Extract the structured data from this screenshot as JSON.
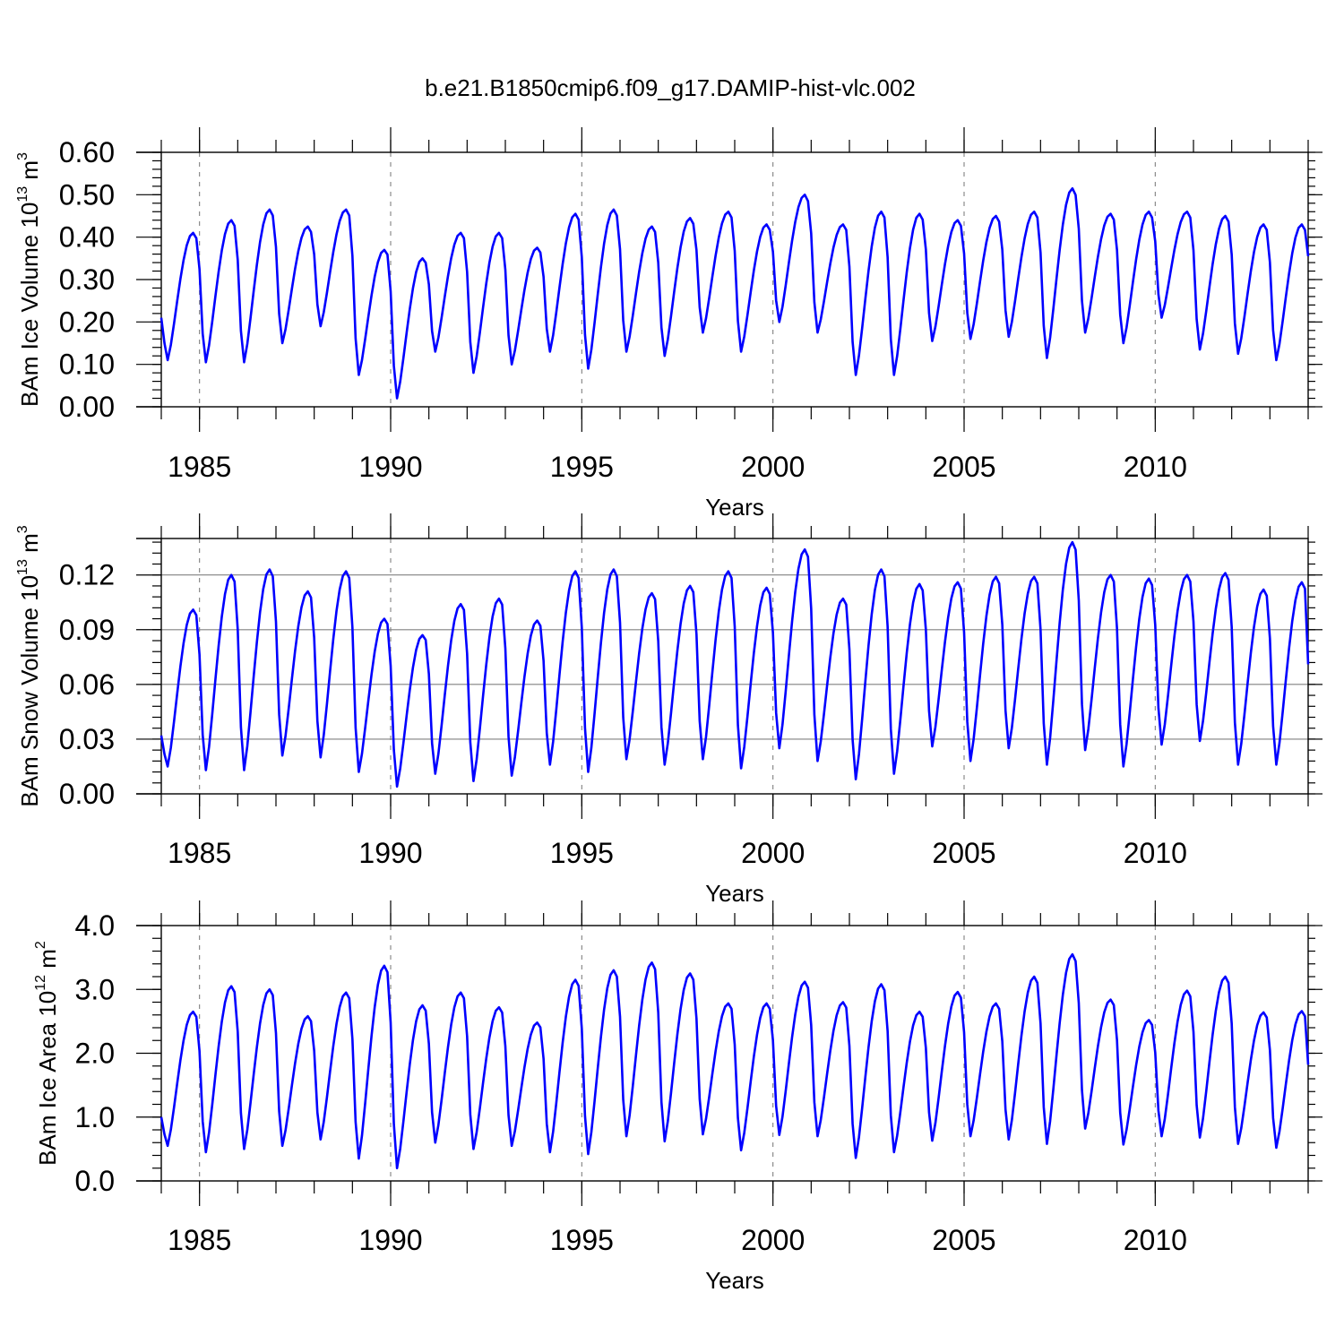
{
  "title": "b.e21.B1850cmip6.f09_g17.DAMIP-hist-vlc.002",
  "line_color": "#0000ff",
  "grid_color": "#808080",
  "chart_data": [
    {
      "type": "line",
      "ylabel": {
        "main": "BAm Ice Volume 10",
        "sup1": "13",
        "mid": " m",
        "sup2": "3"
      },
      "xlabel": "Years",
      "xlim": [
        1984.0,
        2014.0
      ],
      "ylim": [
        0.0,
        0.6
      ],
      "yticks": [
        0.0,
        0.1,
        0.2,
        0.3,
        0.4,
        0.5,
        0.6
      ],
      "ytick_labels": [
        "0.00",
        "0.10",
        "0.20",
        "0.30",
        "0.40",
        "0.50",
        "0.60"
      ],
      "xticks": [
        1985,
        1990,
        1995,
        2000,
        2005,
        2010
      ],
      "xtick_labels": [
        "1985",
        "1990",
        "1995",
        "2000",
        "2005",
        "2010"
      ],
      "grid_x": [
        1985,
        1990,
        1995,
        2000,
        2005,
        2010
      ],
      "series": [
        {
          "name": "BAm Ice Volume",
          "start_year": 1984.0,
          "step": 0.08333,
          "minima": [
            0.11,
            0.105,
            0.105,
            0.15,
            0.19,
            0.075,
            0.02,
            0.13,
            0.08,
            0.1,
            0.13,
            0.09,
            0.13,
            0.12,
            0.175,
            0.13,
            0.2,
            0.175,
            0.075,
            0.075,
            0.155,
            0.16,
            0.165,
            0.115,
            0.175,
            0.15,
            0.21,
            0.135,
            0.125,
            0.11
          ],
          "maxima": [
            0.41,
            0.44,
            0.465,
            0.425,
            0.465,
            0.37,
            0.35,
            0.41,
            0.41,
            0.375,
            0.455,
            0.465,
            0.425,
            0.445,
            0.46,
            0.43,
            0.5,
            0.43,
            0.46,
            0.455,
            0.44,
            0.45,
            0.46,
            0.515,
            0.455,
            0.46,
            0.46,
            0.45,
            0.43,
            0.43
          ],
          "start_value": 0.21,
          "end_value": 0.355
        }
      ]
    },
    {
      "type": "line",
      "ylabel": {
        "main": "BAm Snow Volume 10",
        "sup1": "13",
        "mid": " m",
        "sup2": "3"
      },
      "xlabel": "Years",
      "xlim": [
        1984.0,
        2014.0
      ],
      "ylim": [
        0.0,
        0.14
      ],
      "yticks": [
        0.0,
        0.03,
        0.06,
        0.09,
        0.12
      ],
      "ytick_labels": [
        "0.00",
        "0.03",
        "0.06",
        "0.09",
        "0.12"
      ],
      "xticks": [
        1985,
        1990,
        1995,
        2000,
        2005,
        2010
      ],
      "xtick_labels": [
        "1985",
        "1990",
        "1995",
        "2000",
        "2005",
        "2010"
      ],
      "grid_x": [
        1985,
        1990,
        1995,
        2000,
        2005,
        2010
      ],
      "grid_y": [
        0.03,
        0.06,
        0.09,
        0.12
      ],
      "series": [
        {
          "name": "BAm Snow Volume",
          "start_year": 1984.0,
          "step": 0.08333,
          "minima": [
            0.015,
            0.013,
            0.013,
            0.021,
            0.02,
            0.012,
            0.004,
            0.011,
            0.007,
            0.01,
            0.016,
            0.012,
            0.019,
            0.016,
            0.019,
            0.014,
            0.025,
            0.018,
            0.008,
            0.011,
            0.026,
            0.018,
            0.025,
            0.016,
            0.024,
            0.015,
            0.027,
            0.029,
            0.016,
            0.016
          ],
          "maxima": [
            0.101,
            0.12,
            0.123,
            0.111,
            0.122,
            0.096,
            0.087,
            0.104,
            0.107,
            0.095,
            0.122,
            0.123,
            0.11,
            0.114,
            0.122,
            0.113,
            0.134,
            0.107,
            0.123,
            0.115,
            0.116,
            0.119,
            0.119,
            0.138,
            0.12,
            0.118,
            0.12,
            0.121,
            0.112,
            0.116
          ],
          "start_value": 0.032,
          "end_value": 0.071
        }
      ]
    },
    {
      "type": "line",
      "ylabel": {
        "main": "BAm Ice Area 10",
        "sup1": "12",
        "mid": " m",
        "sup2": "2"
      },
      "xlabel": "Years",
      "xlim": [
        1984.0,
        2014.0
      ],
      "ylim": [
        0.0,
        4.0
      ],
      "yticks": [
        0.0,
        1.0,
        2.0,
        3.0,
        4.0
      ],
      "ytick_labels": [
        "0.0",
        "1.0",
        "2.0",
        "3.0",
        "4.0"
      ],
      "xticks": [
        1985,
        1990,
        1995,
        2000,
        2005,
        2010
      ],
      "xtick_labels": [
        "1985",
        "1990",
        "1995",
        "2000",
        "2005",
        "2010"
      ],
      "grid_x": [
        1985,
        1990,
        1995,
        2000,
        2005,
        2010
      ],
      "series": [
        {
          "name": "BAm Ice Area",
          "start_year": 1984.0,
          "step": 0.08333,
          "minima": [
            0.55,
            0.45,
            0.5,
            0.55,
            0.65,
            0.35,
            0.2,
            0.6,
            0.5,
            0.55,
            0.45,
            0.42,
            0.7,
            0.62,
            0.73,
            0.48,
            0.72,
            0.7,
            0.36,
            0.45,
            0.63,
            0.7,
            0.65,
            0.58,
            0.82,
            0.57,
            0.7,
            0.68,
            0.58,
            0.52
          ],
          "maxima": [
            2.65,
            3.05,
            3.0,
            2.58,
            2.95,
            3.37,
            2.75,
            2.95,
            2.72,
            2.48,
            3.15,
            3.3,
            3.42,
            3.25,
            2.78,
            2.78,
            3.12,
            2.8,
            3.08,
            2.65,
            2.96,
            2.78,
            3.2,
            3.55,
            2.84,
            2.52,
            2.98,
            3.2,
            2.64,
            2.66
          ],
          "start_value": 1.0,
          "end_value": 1.82
        }
      ]
    }
  ]
}
